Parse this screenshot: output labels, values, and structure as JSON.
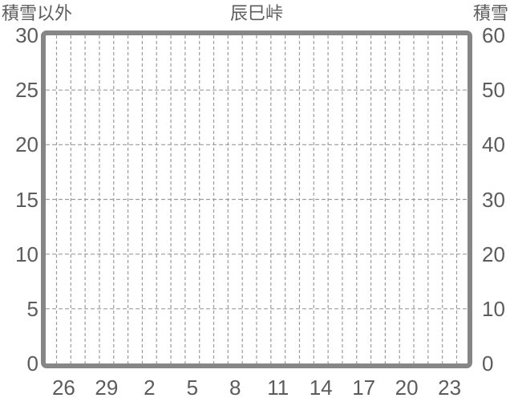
{
  "header": {
    "left_axis_title": "積雪以外",
    "chart_title": "辰巳峠",
    "right_axis_title": "積雪"
  },
  "chart_data": {
    "type": "line",
    "title": "辰巳峠",
    "series": [],
    "x_axis": {
      "tick_labels": [
        "26",
        "29",
        "2",
        "5",
        "8",
        "11",
        "14",
        "17",
        "20",
        "23"
      ],
      "tick_step_days": 3,
      "daily_gridline_count": 29,
      "gridlines": "vertical dashed, one per day"
    },
    "y_axis_left": {
      "title": "積雪以外",
      "tick_labels": [
        "30",
        "25",
        "20",
        "15",
        "10",
        "5",
        "0"
      ],
      "range": [
        0,
        30
      ],
      "gridline_values": [
        25,
        20,
        15,
        10,
        5
      ]
    },
    "y_axis_right": {
      "title": "積雪",
      "tick_labels": [
        "60",
        "50",
        "40",
        "30",
        "20",
        "10",
        "0"
      ],
      "range": [
        0,
        60
      ]
    },
    "grid": "dashed",
    "legend": "none",
    "plot_content": "empty (no data plotted)"
  },
  "colors": {
    "background": "#ffffff",
    "frame": "#868686",
    "gridline": "#9c9c9c",
    "text": "#5c5c5c"
  }
}
